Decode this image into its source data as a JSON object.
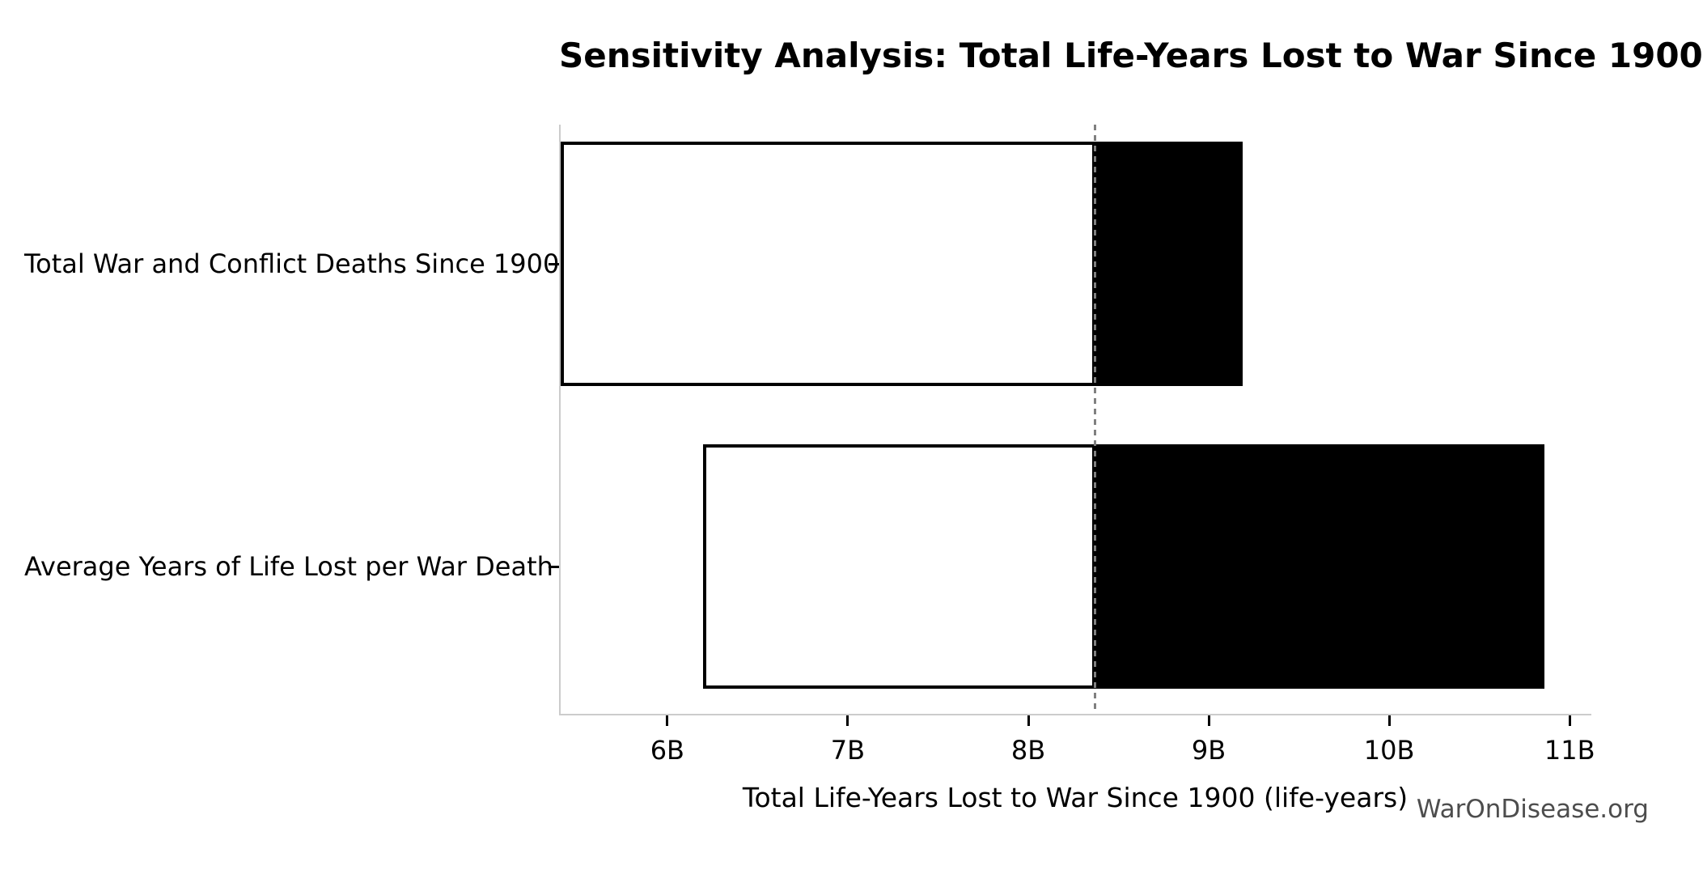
{
  "title": "Sensitivity Analysis: Total Life-Years Lost to War Since 1900",
  "watermark": "WarOnDisease.org",
  "chart_data": {
    "type": "bar",
    "subtype": "tornado-sensitivity-horizontal",
    "title": "Sensitivity Analysis: Total Life-Years Lost to War Since 1900",
    "xlabel": "Total Life-Years Lost to War Since 1900 (life-years)",
    "unit": "billions of life-years",
    "categories": [
      "Total War and Conflict Deaths Since 1900",
      "Average Years of Life Lost per War Death"
    ],
    "bars": [
      {
        "label": "Total War and Conflict Deaths Since 1900",
        "low": 5.41,
        "high": 9.19
      },
      {
        "label": "Average Years of Life Lost per War Death",
        "low": 6.2,
        "high": 10.86
      }
    ],
    "baseline": 8.37,
    "xlim": [
      5.4,
      11.12
    ],
    "xticks": [
      6,
      7,
      8,
      9,
      10,
      11
    ],
    "xtick_labels": [
      "6B",
      "7B",
      "8B",
      "9B",
      "10B",
      "11B"
    ],
    "legend": "none",
    "grid": "off",
    "colors": {
      "low_fill": "#ffffff",
      "low_edge": "#000000",
      "high_fill": "#000000",
      "baseline_line": "#808080",
      "axis_spine": "#cccccc",
      "tick_mark": "#000000",
      "text": "#000000",
      "watermark": "#4d4d4d"
    }
  }
}
